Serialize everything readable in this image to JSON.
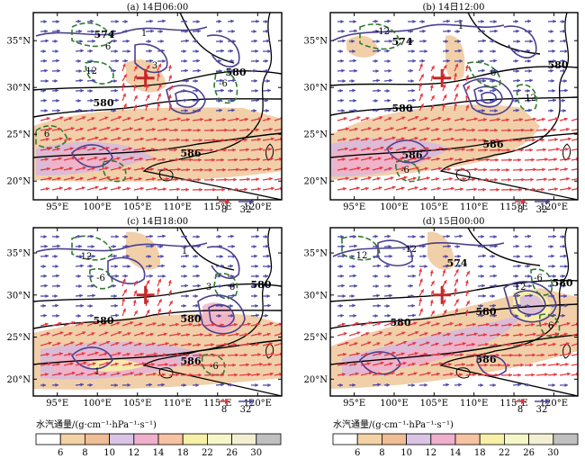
{
  "figure": {
    "panels": [
      {
        "title": "(a) 14日06:00",
        "region_labels": [
          "580",
          "574",
          "580",
          "586"
        ],
        "contour_labels": [
          "1",
          "3",
          "6",
          "-12",
          "6",
          "-6"
        ]
      },
      {
        "title": "(b) 14日12:00",
        "region_labels": [
          "574",
          "580",
          "580",
          "586",
          "586"
        ],
        "contour_labels": [
          "1",
          "-12",
          "6",
          "-12",
          "-6"
        ]
      },
      {
        "title": "(c) 14日18:00",
        "region_labels": [
          "580",
          "580",
          "580",
          "586"
        ],
        "contour_labels": [
          "1",
          "1",
          "3",
          "12",
          "-6",
          "6",
          "-6"
        ]
      },
      {
        "title": "(d) 15日00:00",
        "region_labels": [
          "574",
          "580",
          "580",
          "580",
          "586"
        ],
        "contour_labels": [
          "12",
          "-12",
          "12",
          "-6",
          "6"
        ]
      }
    ],
    "legend": {
      "label": "水汽通量/(g·cm⁻¹·hPa⁻¹·s⁻¹)",
      "ticks": [
        "6",
        "8",
        "10",
        "12",
        "14",
        "18",
        "22",
        "26",
        "30"
      ],
      "colors": [
        "#ffffff",
        "#f3d3a5",
        "#efbd96",
        "#d9c4e6",
        "#f0b0cc",
        "#f6c2a2",
        "#f7f0a6",
        "#f6f7c8",
        "#f3efd2",
        "#c0c0c0"
      ]
    },
    "vector_reference": {
      "small": "8",
      "large": "32",
      "small_color": "#e8343c",
      "large_color": "#4a46a6"
    },
    "marker_color": "#c62828"
  },
  "chart_data": [
    {
      "type": "map-contour",
      "title": "(a) 14日06:00",
      "xlim": [
        92,
        123
      ],
      "ylim": [
        18,
        38
      ],
      "x_ticks": [
        "95°E",
        "100°E",
        "105°E",
        "110°E",
        "115°E",
        "120°E"
      ],
      "y_ticks": [
        "20°N",
        "25°N",
        "30°N",
        "35°N"
      ],
      "marker": [
        106,
        31
      ],
      "height_contour_labels": [
        574,
        580,
        580,
        586
      ],
      "shading_lat_range": [
        19,
        27
      ]
    },
    {
      "type": "map-contour",
      "title": "(b) 14日12:00",
      "xlim": [
        92,
        123
      ],
      "ylim": [
        18,
        38
      ],
      "x_ticks": [
        "95°E",
        "100°E",
        "105°E",
        "110°E",
        "115°E",
        "120°E"
      ],
      "y_ticks": [
        "20°N",
        "25°N",
        "30°N",
        "35°N"
      ],
      "marker": [
        106,
        31
      ],
      "height_contour_labels": [
        574,
        580,
        580,
        586,
        586
      ],
      "shading_lat_range": [
        19,
        26
      ]
    },
    {
      "type": "map-contour",
      "title": "(c) 14日18:00",
      "xlim": [
        92,
        123
      ],
      "ylim": [
        18,
        38
      ],
      "x_ticks": [
        "95°E",
        "100°E",
        "105°E",
        "110°E",
        "115°E",
        "120°E"
      ],
      "y_ticks": [
        "20°N",
        "25°N",
        "30°N",
        "35°N"
      ],
      "marker": [
        106,
        30
      ],
      "height_contour_labels": [
        580,
        580,
        580,
        586
      ],
      "shading_lat_range": [
        20,
        28
      ]
    },
    {
      "type": "map-contour",
      "title": "(d) 15日00:00",
      "xlim": [
        92,
        123
      ],
      "ylim": [
        18,
        38
      ],
      "x_ticks": [
        "95°E",
        "100°E",
        "105°E",
        "110°E",
        "115°E",
        "120°E"
      ],
      "y_ticks": [
        "20°N",
        "25°N",
        "30°N",
        "35°N"
      ],
      "marker": [
        106,
        30
      ],
      "height_contour_labels": [
        574,
        580,
        580,
        580,
        586
      ],
      "shading_lat_range": [
        20,
        27
      ]
    }
  ]
}
